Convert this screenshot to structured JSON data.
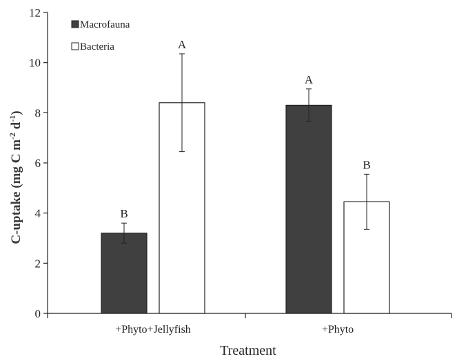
{
  "chart_data": {
    "type": "bar",
    "title": "",
    "xlabel": "Treatment",
    "ylabel_parts": [
      "C-uptake (mg C m",
      "-2",
      " d",
      "-1",
      ")"
    ],
    "ylim": [
      0,
      12
    ],
    "yticks": [
      "0",
      "2",
      "4",
      "6",
      "8",
      "10",
      "12"
    ],
    "grid": false,
    "legend_position": "top-left",
    "categories": [
      "+Phyto+Jellyfish",
      "+Phyto"
    ],
    "series": [
      {
        "name": "Macrofauna",
        "color": "#404040",
        "values": [
          3.2,
          8.3
        ],
        "errors": [
          0.4,
          0.65
        ],
        "labels": [
          "B",
          "A"
        ]
      },
      {
        "name": "Bacteria",
        "color": "#ffffff",
        "values": [
          8.4,
          4.45
        ],
        "errors": [
          1.95,
          1.1
        ],
        "labels": [
          "A",
          "B"
        ]
      }
    ]
  }
}
